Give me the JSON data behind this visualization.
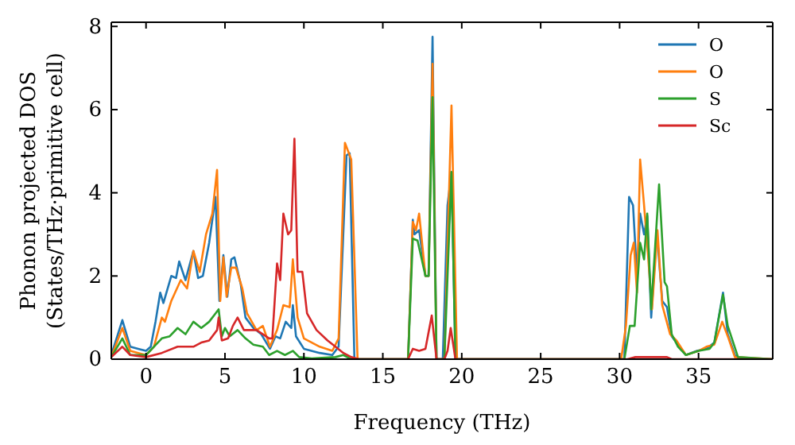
{
  "chart_data": {
    "type": "line",
    "xlabel": "Frequency (THz)",
    "ylabel": "Phonon projected DOS\n(States/THz·primitive cell)",
    "xlim": [
      -2.2,
      39.7
    ],
    "ylim": [
      0,
      8.1
    ],
    "xticks": [
      0,
      5,
      10,
      15,
      20,
      25,
      30,
      35
    ],
    "yticks": [
      0,
      2,
      4,
      6,
      8
    ],
    "grid": false,
    "legend": "top right",
    "line_style": "solid",
    "marker": "none",
    "series": [
      {
        "name": "O",
        "color": "#1f77b4",
        "x": [
          -2.2,
          -1.5,
          -1,
          -0.5,
          0,
          0.3,
          0.6,
          0.9,
          1.1,
          1.6,
          1.9,
          2.1,
          2.5,
          3.0,
          3.3,
          3.6,
          4.0,
          4.4,
          4.65,
          4.9,
          5.15,
          5.4,
          5.6,
          6.0,
          6.3,
          6.8,
          7.3,
          7.85,
          8.2,
          8.5,
          8.85,
          9.2,
          9.3,
          9.5,
          10.0,
          11.0,
          11.8,
          12.2,
          12.7,
          12.9,
          13.2,
          16.6,
          16.9,
          17.0,
          17.3,
          17.7,
          17.9,
          18.15,
          18.4,
          18.8,
          19.1,
          19.35,
          19.6,
          30.3,
          30.6,
          30.85,
          31.1,
          31.3,
          31.55,
          31.75,
          32.0,
          32.35,
          32.7,
          33.0,
          33.3,
          33.7,
          34.2,
          34.9,
          35.5,
          36.0,
          36.55,
          36.85,
          37.3,
          37.6,
          39.7
        ],
        "values": [
          0.1,
          0.94,
          0.3,
          0.25,
          0.2,
          0.3,
          0.9,
          1.6,
          1.35,
          2.0,
          1.95,
          2.35,
          1.9,
          2.6,
          1.95,
          2.0,
          2.8,
          3.9,
          1.4,
          2.5,
          1.5,
          2.4,
          2.45,
          1.8,
          1.0,
          0.75,
          0.6,
          0.25,
          0.55,
          0.5,
          0.9,
          0.75,
          1.3,
          0.55,
          0.25,
          0.15,
          0.1,
          0.3,
          4.9,
          4.95,
          0,
          0,
          3.35,
          3.0,
          3.1,
          2.0,
          2.0,
          7.75,
          0,
          0,
          3.7,
          4.5,
          0,
          0,
          3.9,
          3.7,
          2.0,
          3.5,
          3.0,
          3.45,
          1.0,
          3.1,
          1.4,
          1.25,
          0.55,
          0.35,
          0.1,
          0.2,
          0.25,
          0.4,
          1.6,
          0.6,
          0.1,
          0,
          0
        ]
      },
      {
        "name": "O",
        "color": "#ff7f0e",
        "x": [
          -2.2,
          -1.5,
          -1,
          -0.5,
          0,
          0.5,
          1.0,
          1.2,
          1.6,
          2.2,
          2.6,
          3.0,
          3.4,
          3.8,
          4.2,
          4.5,
          4.7,
          4.9,
          5.1,
          5.4,
          5.7,
          6.1,
          6.4,
          7.0,
          7.4,
          7.85,
          8.3,
          8.7,
          9.1,
          9.3,
          9.6,
          10.0,
          11.0,
          11.8,
          12.2,
          12.6,
          13.0,
          13.4,
          16.6,
          16.9,
          17.1,
          17.3,
          17.7,
          17.9,
          18.15,
          18.4,
          18.9,
          19.35,
          19.7,
          30.1,
          30.4,
          30.7,
          30.9,
          31.1,
          31.3,
          31.55,
          31.8,
          32.05,
          32.4,
          32.7,
          33.2,
          33.6,
          34.2,
          35.0,
          35.5,
          36.0,
          36.5,
          36.9,
          37.3,
          39.7
        ],
        "values": [
          0.05,
          0.75,
          0.2,
          0.15,
          0.1,
          0.3,
          1.0,
          0.9,
          1.4,
          1.9,
          1.7,
          2.6,
          2.1,
          3.0,
          3.5,
          4.55,
          1.4,
          2.45,
          1.5,
          2.2,
          2.2,
          1.7,
          1.1,
          0.7,
          0.8,
          0.3,
          0.7,
          1.3,
          1.25,
          2.4,
          1.0,
          0.5,
          0.3,
          0.2,
          0.5,
          5.2,
          4.8,
          0,
          0,
          3.3,
          3.1,
          3.5,
          2.0,
          2.0,
          7.1,
          0,
          0,
          6.1,
          0,
          0,
          0.8,
          2.5,
          2.8,
          1.6,
          4.8,
          3.7,
          2.5,
          1.2,
          3.1,
          1.3,
          0.6,
          0.45,
          0.1,
          0.2,
          0.3,
          0.35,
          0.9,
          0.5,
          0.05,
          0
        ]
      },
      {
        "name": "S",
        "color": "#2ca02c",
        "x": [
          -2.2,
          -1.5,
          -1,
          0,
          0.5,
          1,
          1.5,
          2,
          2.5,
          3,
          3.5,
          4,
          4.4,
          4.6,
          4.8,
          5,
          5.3,
          5.8,
          6.3,
          6.8,
          7.4,
          7.8,
          8.3,
          8.8,
          9.3,
          9.7,
          10.5,
          12,
          12.5,
          13,
          16.6,
          16.9,
          17.2,
          17.7,
          17.9,
          18.15,
          18.4,
          18.9,
          19.35,
          19.6,
          30.3,
          30.65,
          30.95,
          31.3,
          31.55,
          31.75,
          32.0,
          32.5,
          32.85,
          33.0,
          33.3,
          33.7,
          34.2,
          35.0,
          35.7,
          36.0,
          36.55,
          36.85,
          37.5,
          39.7
        ],
        "values": [
          0.05,
          0.5,
          0.1,
          0.1,
          0.3,
          0.5,
          0.55,
          0.75,
          0.6,
          0.9,
          0.75,
          0.9,
          1.1,
          1.2,
          0.55,
          0.75,
          0.55,
          0.7,
          0.5,
          0.35,
          0.3,
          0.1,
          0.2,
          0.1,
          0.2,
          0.05,
          0.02,
          0.05,
          0.1,
          0,
          0,
          2.9,
          2.85,
          2.0,
          2.0,
          6.3,
          0,
          0,
          4.5,
          0,
          0,
          0.8,
          0.8,
          2.8,
          2.4,
          3.5,
          1.2,
          4.2,
          1.85,
          1.75,
          0.6,
          0.3,
          0.1,
          0.2,
          0.25,
          0.4,
          1.55,
          0.8,
          0.05,
          0
        ]
      },
      {
        "name": "Sc",
        "color": "#d62728",
        "x": [
          -2.2,
          -1.5,
          -1,
          0,
          1,
          2,
          3,
          3.5,
          4,
          4.5,
          4.6,
          4.8,
          5.2,
          5.5,
          5.8,
          6.2,
          7,
          7.4,
          7.8,
          8.0,
          8.3,
          8.5,
          8.7,
          9.0,
          9.2,
          9.4,
          9.6,
          9.9,
          10.2,
          10.8,
          11.5,
          12.0,
          12.5,
          13,
          13.5,
          16.6,
          16.9,
          17.3,
          17.7,
          18.1,
          18.4,
          18.9,
          19.1,
          19.3,
          19.6,
          30.5,
          31.0,
          32.0,
          33.0,
          33.3,
          39.7
        ],
        "values": [
          0.05,
          0.3,
          0.1,
          0.05,
          0.15,
          0.3,
          0.3,
          0.4,
          0.45,
          0.7,
          1.0,
          0.45,
          0.5,
          0.8,
          1.0,
          0.7,
          0.7,
          0.6,
          0.5,
          0.5,
          2.3,
          1.9,
          3.5,
          3.0,
          3.1,
          5.3,
          2.1,
          2.1,
          1.1,
          0.7,
          0.45,
          0.3,
          0.15,
          0.05,
          0,
          0,
          0.25,
          0.2,
          0.25,
          1.05,
          0,
          0,
          0.2,
          0.75,
          0,
          0,
          0.05,
          0.05,
          0.05,
          0,
          0
        ]
      }
    ]
  }
}
